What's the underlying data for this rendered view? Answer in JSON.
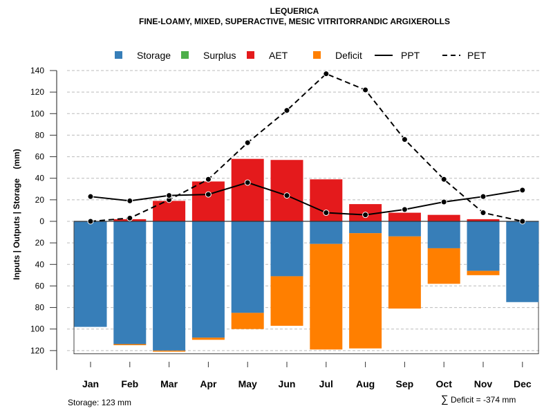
{
  "chart_data": {
    "type": "bar",
    "title": "LEQUERICA",
    "subtitle": "FINE-LOAMY, MIXED, SUPERACTIVE, MESIC VITRITORRANDIC ARGIXEROLLS",
    "ylabel": "Inputs | Outputs | Storage    (mm)",
    "xlabel": "",
    "ylim": [
      -123,
      140
    ],
    "y_ticks": [
      140,
      120,
      100,
      80,
      60,
      40,
      20,
      0,
      -20,
      -40,
      -60,
      -80,
      -100,
      -120
    ],
    "y_tick_labels": [
      "140",
      "120",
      "100",
      "80",
      "60",
      "40",
      "20",
      "0",
      "20",
      "40",
      "60",
      "80",
      "100",
      "120"
    ],
    "grid": true,
    "legend_position": "top",
    "legend": [
      {
        "name": "Storage",
        "kind": "box",
        "color": "#377EB8"
      },
      {
        "name": "Surplus",
        "kind": "box",
        "color": "#4DAF4A"
      },
      {
        "name": "AET",
        "kind": "box",
        "color": "#E41A1C"
      },
      {
        "name": "Deficit",
        "kind": "box",
        "color": "#FF7F00"
      },
      {
        "name": "PPT",
        "kind": "solid-line",
        "color": "#000000"
      },
      {
        "name": "PET",
        "kind": "dashed-line",
        "color": "#000000"
      }
    ],
    "categories": [
      "Jan",
      "Feb",
      "Mar",
      "Apr",
      "May",
      "Jun",
      "Jul",
      "Aug",
      "Sep",
      "Oct",
      "Nov",
      "Dec"
    ],
    "series": [
      {
        "name": "Storage",
        "values": [
          98,
          114,
          120,
          108,
          85,
          51,
          21,
          11,
          14,
          25,
          46,
          75
        ]
      },
      {
        "name": "Surplus",
        "values": [
          0,
          0,
          0,
          0,
          0,
          0,
          0,
          0,
          0,
          0,
          0,
          0
        ]
      },
      {
        "name": "AET",
        "values": [
          0,
          2,
          19,
          37,
          58,
          57,
          39,
          16,
          8,
          6,
          2,
          0
        ]
      },
      {
        "name": "Deficit",
        "values": [
          0,
          1,
          1,
          2,
          15,
          46,
          98,
          107,
          67,
          33,
          4,
          0
        ]
      },
      {
        "name": "PPT",
        "values": [
          23,
          19,
          24,
          25,
          36,
          24,
          8,
          6,
          11,
          18,
          23,
          29
        ]
      },
      {
        "name": "PET",
        "values": [
          0,
          3,
          20,
          39,
          73,
          103,
          137,
          122,
          76,
          39,
          8,
          0
        ]
      }
    ],
    "storage_capacity": 123,
    "annotations": {
      "storage": "Storage: 123 mm",
      "deficit": "Deficit = -374 mm",
      "deficit_symbol": "∑"
    }
  }
}
